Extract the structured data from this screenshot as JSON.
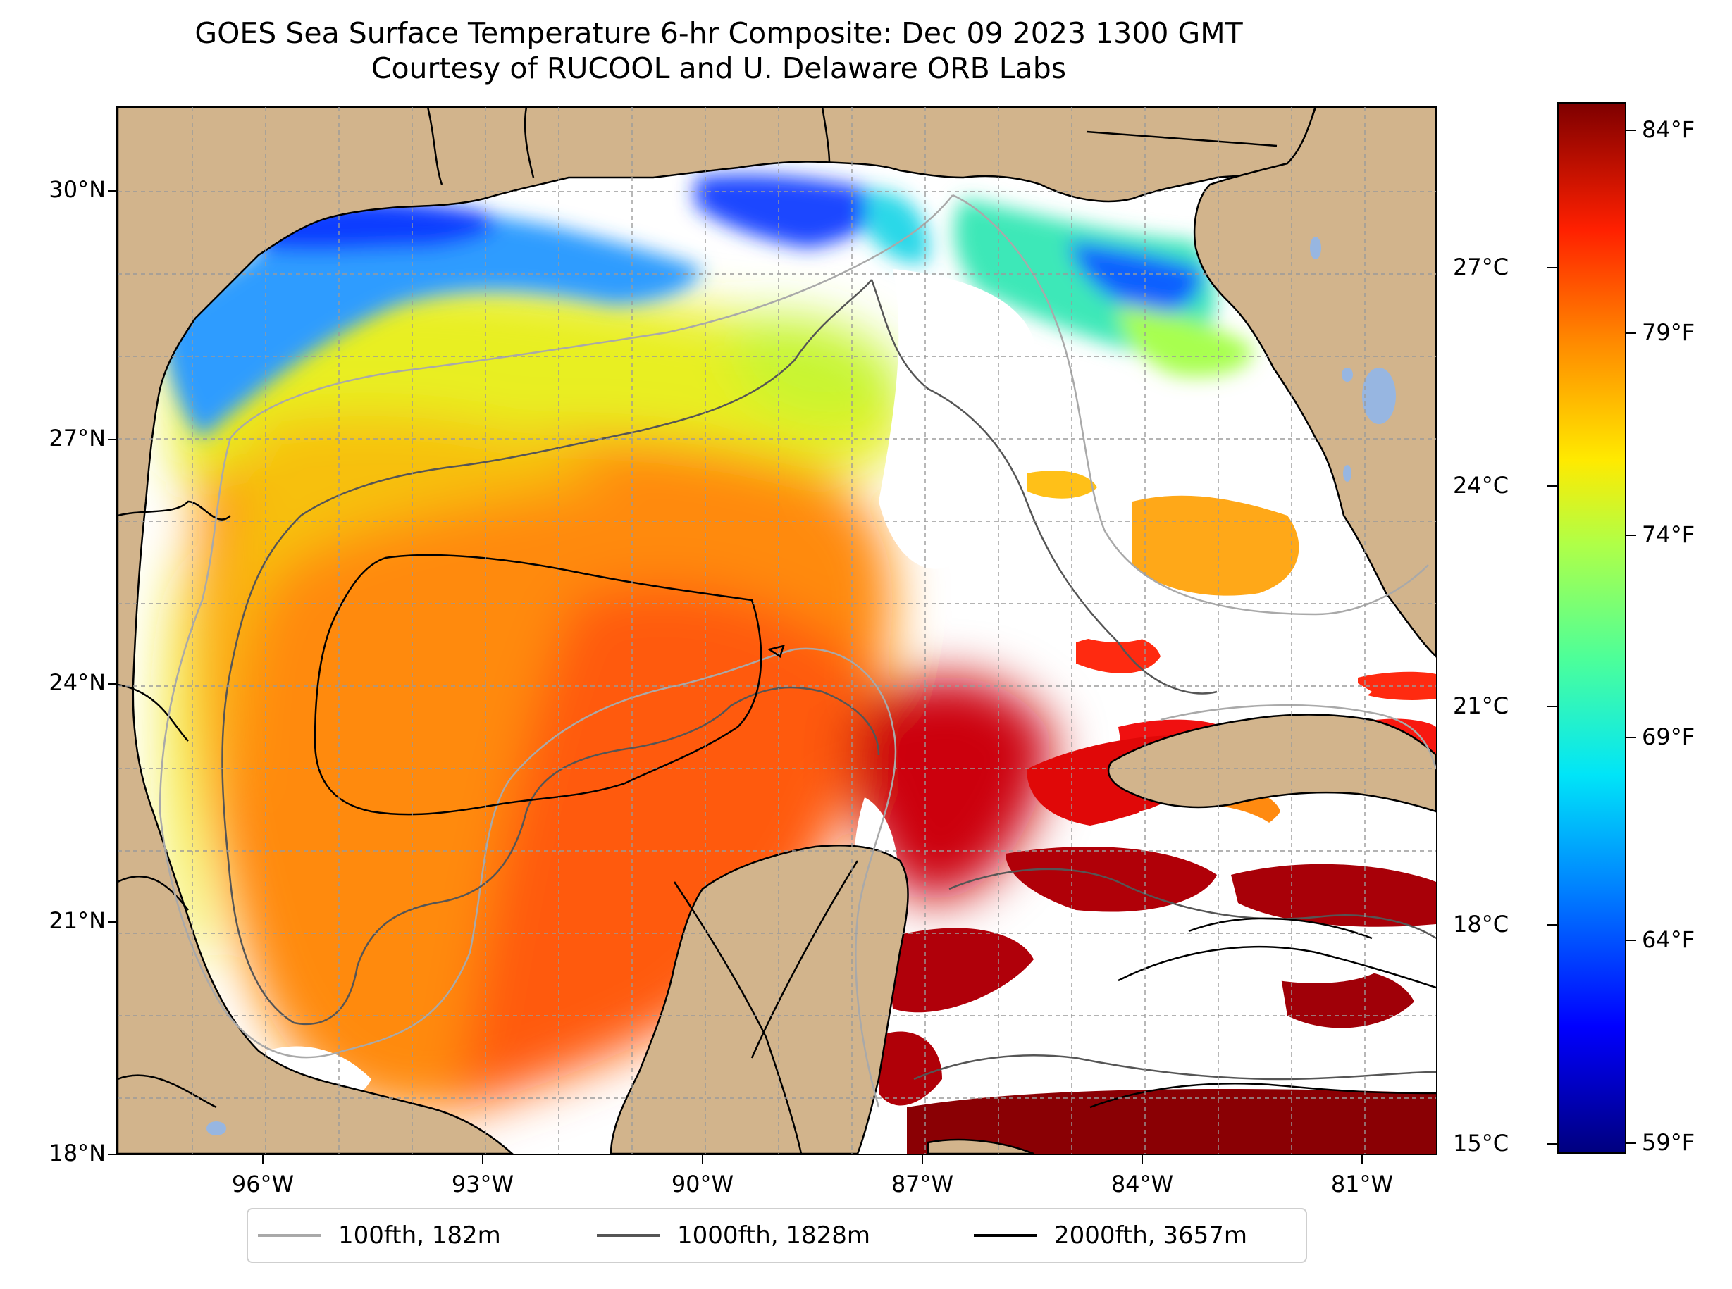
{
  "title": {
    "line1": "GOES Sea Surface Temperature 6-hr Composite: Dec 09 2023 1300 GMT",
    "line2": "Courtesy of RUCOOL and U. Delaware ORB Labs"
  },
  "map": {
    "lat_ticks": [
      "30°N",
      "27°N",
      "24°N",
      "21°N",
      "18°N"
    ],
    "lon_ticks": [
      "96°W",
      "93°W",
      "90°W",
      "87°W",
      "84°W",
      "81°W"
    ],
    "land_color": "#d2b48c",
    "lake_color": "#97b6e1"
  },
  "colorbar": {
    "celsius_labels": [
      "27°C",
      "24°C",
      "21°C",
      "18°C",
      "15°C"
    ],
    "fahrenheit_labels": [
      "84°F",
      "79°F",
      "74°F",
      "69°F",
      "64°F",
      "59°F"
    ],
    "colormap": "jet",
    "range_celsius": [
      15,
      29
    ]
  },
  "legend": {
    "items": [
      {
        "label": "100fth, 182m",
        "color": "#a9a9a9"
      },
      {
        "label": "1000fth, 1828m",
        "color": "#555555"
      },
      {
        "label": "2000fth, 3657m",
        "color": "#000000"
      }
    ]
  }
}
